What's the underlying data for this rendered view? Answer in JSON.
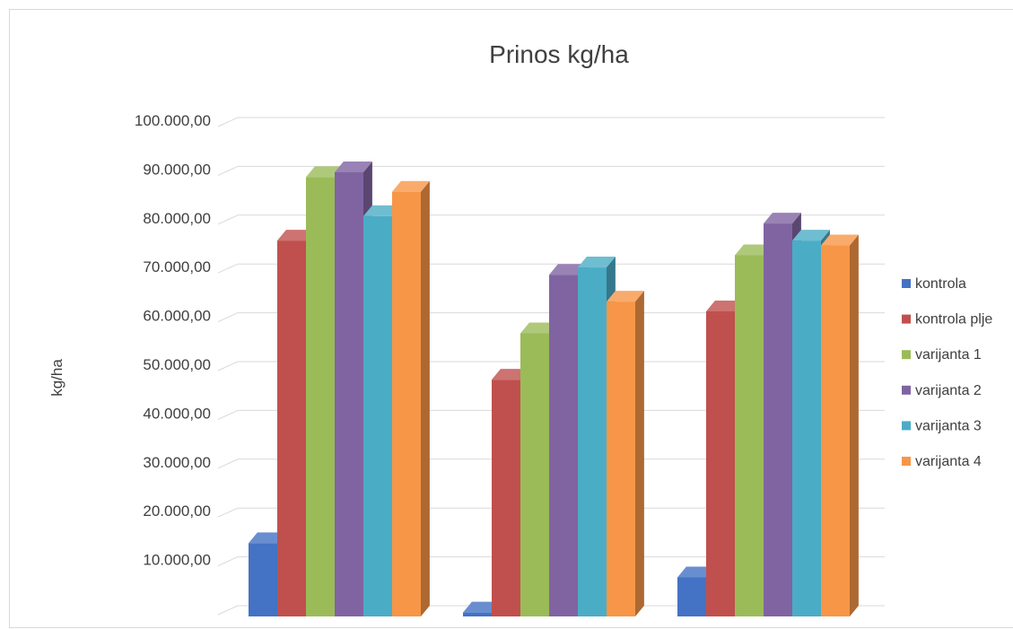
{
  "chart_data": {
    "type": "bar",
    "title": "Prinos kg/ha",
    "xlabel": "",
    "ylabel": "kg/ha",
    "ylim": [
      0,
      100000
    ],
    "y_ticks": [
      "",
      "10.000,00",
      "20.000,00",
      "30.000,00",
      "40.000,00",
      "50.000,00",
      "60.000,00",
      "70.000,00",
      "80.000,00",
      "90.000,00",
      "100.000,00"
    ],
    "grid": true,
    "legend_position": "right",
    "categories": [
      "",
      "",
      ""
    ],
    "series": [
      {
        "name": "kontrola",
        "color": "#4472c4",
        "values": [
          15000,
          800,
          8000
        ]
      },
      {
        "name": "kontrola plje",
        "color": "#c0504d",
        "values": [
          77000,
          48500,
          62500
        ]
      },
      {
        "name": "varijanta 1",
        "color": "#9bbb59",
        "values": [
          90000,
          58000,
          74000
        ]
      },
      {
        "name": "varijanta 2",
        "color": "#8064a2",
        "values": [
          91000,
          70000,
          80500
        ]
      },
      {
        "name": "varijanta 3",
        "color": "#4bacc6",
        "values": [
          82000,
          71500,
          77000
        ]
      },
      {
        "name": "varijanta 4",
        "color": "#f79646",
        "values": [
          87000,
          64500,
          76000
        ]
      }
    ]
  }
}
